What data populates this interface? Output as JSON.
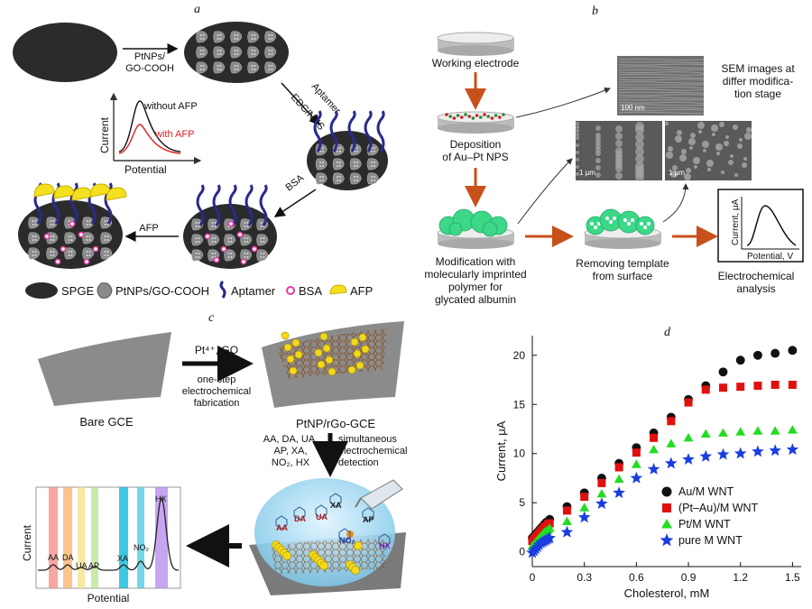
{
  "panel_labels": {
    "a": "a",
    "b": "b",
    "c": "c",
    "d": "d"
  },
  "panel_a": {
    "step1": [
      "PtNPs/",
      "GO-COOH"
    ],
    "step2": [
      "Aptamer",
      "EDC/NHS"
    ],
    "step3": "BSA",
    "step4": "AFP",
    "plot": {
      "ylabel": "Current",
      "xlabel": "Potential",
      "without": "without AFP",
      "with": "with AFP"
    },
    "legend": {
      "spge": "SPGE",
      "ptnps": "PtNPs/GO-COOH",
      "aptamer": "Aptamer",
      "bsa": "BSA",
      "afp": "AFP"
    },
    "colors": {
      "electrode": "#2b2b2b",
      "aptamer": "#2a2a8c",
      "afp": "#f5e020",
      "bsa": "#e23aa0",
      "with_afp": "#e02020"
    }
  },
  "panel_b": {
    "working_electrode": "Working electrode",
    "deposition": [
      "Deposition",
      "of Au–Pt NPS"
    ],
    "modification": [
      "Modification with",
      "molecularly imprinted",
      "polymer for",
      "glycated albumin"
    ],
    "removing": [
      "Removing template",
      "from surface"
    ],
    "electrochemical": [
      "Electrochemical",
      "analysis"
    ],
    "sem": [
      "SEM images at",
      "differ modifica-",
      "tion stage"
    ],
    "scale_top": "100 nm",
    "scale_left": "1 μm",
    "scale_right": "1 μm",
    "plot_ylabel": "Current, μA",
    "plot_xlabel": "Potential, V",
    "colors": {
      "arrow": "#c8501a",
      "polymer": "#3cd888"
    }
  },
  "panel_c": {
    "bare": "Bare GCE",
    "reagents": "Pt⁴⁺, GO",
    "fabrication": [
      "one-step",
      "electrochemical",
      "fabrication"
    ],
    "product": "PtNP/rGo-GCE",
    "analytes": [
      "AA, DA, UA,",
      "AP, XA,",
      "NO₂, HX"
    ],
    "detection": [
      "simultaneous",
      "electrochemical",
      "detection"
    ],
    "ylabel": "Current",
    "xlabel": "Potential",
    "peaks": [
      "AA",
      "DA",
      "UA",
      "AP",
      "XA",
      "NO₂",
      "HX"
    ],
    "molecules": [
      "AA",
      "DA",
      "UA",
      "XA",
      "AP",
      "NO₂",
      "HX"
    ],
    "band_colors": [
      "#f28b82",
      "#f7b267",
      "#f4e285",
      "#b5e48c",
      "#00b4d8",
      "#48cae4",
      "#b388eb"
    ]
  },
  "chart_data": {
    "type": "scatter",
    "title": "",
    "xlabel": "Cholesterol, mM",
    "ylabel": "Current, μA",
    "xlim": [
      0,
      1.55
    ],
    "ylim": [
      -1.5,
      22
    ],
    "xticks": [
      "0",
      "0.3",
      "0.6",
      "0.9",
      "1.2",
      "1.5"
    ],
    "yticks": [
      "0",
      "5",
      "10",
      "15",
      "20"
    ],
    "xtick_values": [
      0,
      0.3,
      0.6,
      0.9,
      1.2,
      1.5
    ],
    "ytick_values": [
      0,
      5,
      10,
      15,
      20
    ],
    "grid": false,
    "legend": "bottom-right",
    "series": [
      {
        "name": "Au/M WNT",
        "marker": "circle",
        "color": "#111111",
        "x": [
          0,
          0.01,
          0.02,
          0.03,
          0.04,
          0.05,
          0.06,
          0.07,
          0.08,
          0.09,
          0.1,
          0.2,
          0.3,
          0.4,
          0.5,
          0.6,
          0.7,
          0.8,
          0.9,
          1.0,
          1.1,
          1.2,
          1.3,
          1.4,
          1.5
        ],
        "y": [
          1.4,
          1.6,
          1.8,
          2.0,
          2.2,
          2.4,
          2.6,
          2.8,
          3.0,
          3.1,
          3.3,
          4.6,
          6.0,
          7.5,
          9.0,
          10.6,
          12.1,
          13.7,
          15.5,
          16.9,
          18.3,
          19.5,
          20.0,
          20.2,
          20.5
        ]
      },
      {
        "name": "(Pt–Au)/M WNT",
        "marker": "square",
        "color": "#e01010",
        "x": [
          0,
          0.01,
          0.02,
          0.03,
          0.04,
          0.05,
          0.06,
          0.07,
          0.08,
          0.09,
          0.1,
          0.2,
          0.3,
          0.4,
          0.5,
          0.6,
          0.7,
          0.8,
          0.9,
          1.0,
          1.1,
          1.2,
          1.3,
          1.4,
          1.5
        ],
        "y": [
          1.1,
          1.3,
          1.5,
          1.7,
          1.9,
          2.1,
          2.3,
          2.5,
          2.6,
          2.8,
          2.9,
          4.2,
          5.6,
          7.0,
          8.6,
          10.1,
          11.6,
          13.3,
          15.2,
          16.5,
          16.7,
          16.8,
          16.9,
          17.0,
          17.0
        ]
      },
      {
        "name": "Pt/M WNT",
        "marker": "triangle",
        "color": "#22dd22",
        "x": [
          0,
          0.01,
          0.02,
          0.03,
          0.04,
          0.05,
          0.06,
          0.07,
          0.08,
          0.09,
          0.1,
          0.2,
          0.3,
          0.4,
          0.5,
          0.6,
          0.7,
          0.8,
          0.9,
          1.0,
          1.1,
          1.2,
          1.3,
          1.4,
          1.5
        ],
        "y": [
          0.6,
          0.8,
          1.0,
          1.2,
          1.4,
          1.6,
          1.8,
          2.0,
          2.1,
          2.2,
          2.4,
          3.1,
          4.5,
          5.9,
          7.4,
          8.9,
          10.4,
          11.0,
          11.6,
          12.0,
          12.1,
          12.2,
          12.3,
          12.3,
          12.4
        ]
      },
      {
        "name": "pure M WNT",
        "marker": "star",
        "color": "#1a3de0",
        "x": [
          0,
          0.01,
          0.02,
          0.03,
          0.04,
          0.05,
          0.06,
          0.07,
          0.08,
          0.09,
          0.1,
          0.2,
          0.3,
          0.4,
          0.5,
          0.6,
          0.7,
          0.8,
          0.9,
          1.0,
          1.1,
          1.2,
          1.3,
          1.4,
          1.5
        ],
        "y": [
          -0.1,
          0.1,
          0.3,
          0.5,
          0.7,
          0.9,
          1.0,
          1.1,
          1.2,
          1.3,
          1.4,
          2.0,
          3.5,
          4.9,
          6.0,
          7.5,
          8.4,
          9.0,
          9.4,
          9.7,
          9.9,
          10.0,
          10.2,
          10.3,
          10.4
        ]
      }
    ]
  }
}
